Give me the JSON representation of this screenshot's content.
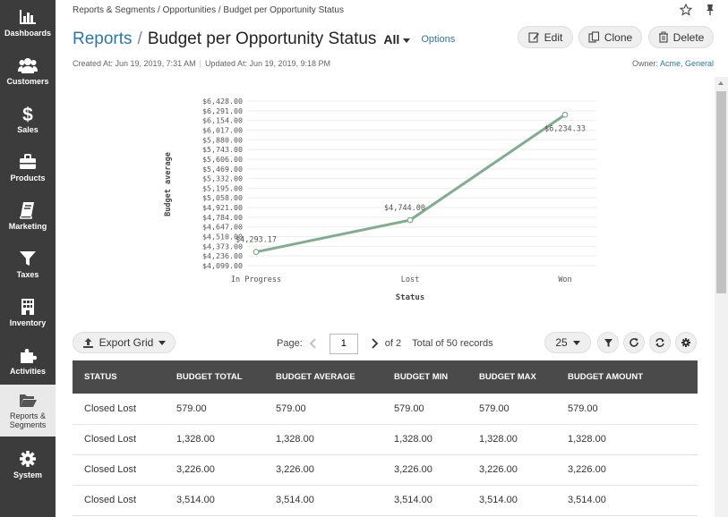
{
  "sidebar": {
    "items": [
      {
        "label": "Dashboards",
        "icon": "bar-chart-icon"
      },
      {
        "label": "Customers",
        "icon": "users-icon"
      },
      {
        "label": "Sales",
        "icon": "dollar-icon"
      },
      {
        "label": "Products",
        "icon": "briefcase-icon"
      },
      {
        "label": "Marketing",
        "icon": "book-icon"
      },
      {
        "label": "Taxes",
        "icon": "funnel-icon"
      },
      {
        "label": "Inventory",
        "icon": "building-icon"
      },
      {
        "label": "Activities",
        "icon": "puzzle-icon"
      },
      {
        "label": "Reports & Segments",
        "icon": "folder-open-icon"
      },
      {
        "label": "System",
        "icon": "gear-icon"
      }
    ]
  },
  "header": {
    "breadcrumb": "Reports & Segments / Opportunities / Budget per Opportunity Status",
    "title_link": "Reports",
    "title_sep": "/",
    "title": "Budget per Opportunity Status",
    "filter": "All",
    "options": "Options",
    "edit": "Edit",
    "clone": "Clone",
    "delete": "Delete",
    "created": "Created At: Jun 19, 2019, 7:31 AM",
    "updated": "Updated At: Jun 19, 2019, 9:18 PM",
    "owner_label": "Owner:",
    "owner_value": "Acme, General"
  },
  "chart_data": {
    "type": "line",
    "categories": [
      "In Progress",
      "Lost",
      "Won"
    ],
    "values": [
      4293.17,
      4744.0,
      6234.33
    ],
    "value_labels": [
      "$4,293.17",
      "$4,744.00",
      "$6,234.33"
    ],
    "xlabel": "Status",
    "ylabel": "Budget average",
    "ylim": [
      4099.0,
      6428.0
    ],
    "yticks": [
      "$6,428.00",
      "$6,291.00",
      "$6,154.00",
      "$6,017.00",
      "$5,880.00",
      "$5,743.00",
      "$5,606.00",
      "$5,469.00",
      "$5,332.00",
      "$5,195.00",
      "$5,058.00",
      "$4,921.00",
      "$4,784.00",
      "$4,647.00",
      "$4,510.00",
      "$4,373.00",
      "$4,236.00",
      "$4,099.00"
    ],
    "line_color": "#7fad8f"
  },
  "toolbar": {
    "export": "Export Grid",
    "page_label": "Page:",
    "page": "1",
    "of": "of 2",
    "total": "Total of 50 records",
    "per_page": "25"
  },
  "table": {
    "columns": [
      "Status",
      "Budget Total",
      "Budget Average",
      "Budget Min",
      "Budget Max",
      "Budget Amount"
    ],
    "rows": [
      [
        "Closed Lost",
        "579.00",
        "579.00",
        "579.00",
        "579.00",
        "579.00"
      ],
      [
        "Closed Lost",
        "1,328.00",
        "1,328.00",
        "1,328.00",
        "1,328.00",
        "1,328.00"
      ],
      [
        "Closed Lost",
        "3,226.00",
        "3,226.00",
        "3,226.00",
        "3,226.00",
        "3,226.00"
      ],
      [
        "Closed Lost",
        "3,514.00",
        "3,514.00",
        "3,514.00",
        "3,514.00",
        "3,514.00"
      ]
    ]
  }
}
